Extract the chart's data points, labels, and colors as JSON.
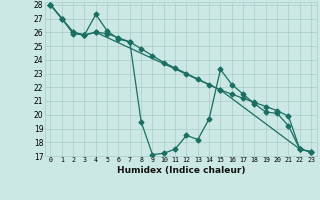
{
  "title": "",
  "xlabel": "Humidex (Indice chaleur)",
  "background_color": "#cce8e4",
  "grid_color": "#aaccca",
  "line_color": "#1a6e62",
  "xlim": [
    -0.5,
    23.5
  ],
  "ylim": [
    17,
    28.2
  ],
  "yticks": [
    17,
    18,
    19,
    20,
    21,
    22,
    23,
    24,
    25,
    26,
    27,
    28
  ],
  "xticks": [
    0,
    1,
    2,
    3,
    4,
    5,
    6,
    7,
    8,
    9,
    10,
    11,
    12,
    13,
    14,
    15,
    16,
    17,
    18,
    19,
    20,
    21,
    22,
    23
  ],
  "series1_x": [
    0,
    1,
    2,
    3,
    4,
    5,
    6,
    7,
    8,
    9,
    10,
    11,
    12,
    13,
    14,
    15,
    16,
    17,
    18,
    19,
    20,
    21,
    22,
    23
  ],
  "series1_y": [
    28,
    27,
    26,
    25.8,
    27.3,
    26.1,
    25.5,
    25.3,
    19.5,
    17.1,
    17.2,
    17.5,
    18.5,
    18.2,
    19.7,
    23.3,
    22.2,
    21.5,
    20.8,
    20.2,
    20.1,
    19.2,
    17.5,
    17.3
  ],
  "series2_x": [
    0,
    1,
    2,
    3,
    4,
    5,
    6,
    7,
    8,
    9,
    10,
    11,
    12,
    13,
    14,
    15,
    16,
    17,
    18,
    19,
    20,
    21,
    22,
    23
  ],
  "series2_y": [
    28,
    27,
    25.9,
    25.8,
    26.0,
    25.9,
    25.6,
    25.3,
    24.8,
    24.3,
    23.8,
    23.4,
    23.0,
    22.6,
    22.2,
    21.8,
    21.5,
    21.2,
    20.9,
    20.6,
    20.3,
    19.9,
    17.5,
    17.3
  ],
  "series3_x": [
    0,
    1,
    2,
    3,
    4,
    15,
    22,
    23
  ],
  "series3_y": [
    28,
    27,
    26,
    25.8,
    26,
    21.8,
    17.5,
    17.3
  ]
}
